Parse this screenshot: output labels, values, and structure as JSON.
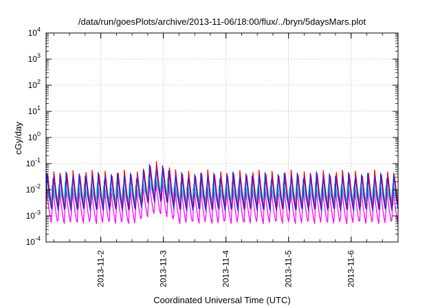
{
  "chart_data": {
    "type": "line",
    "title": "/data/run/goesPlots/archive/2013-11-06/18:00/flux/../bryn/5daysMars.plot",
    "xlabel": "Coordinated Universal Time (UTC)",
    "ylabel": "cGy/day",
    "yscale": "log",
    "ylim": [
      0.0001,
      10000
    ],
    "y_ticks": [
      {
        "value": 0.0001,
        "base": "10",
        "exp": "-4"
      },
      {
        "value": 0.001,
        "base": "10",
        "exp": "-3"
      },
      {
        "value": 0.01,
        "base": "10",
        "exp": "-2"
      },
      {
        "value": 0.1,
        "base": "10",
        "exp": "-1"
      },
      {
        "value": 1,
        "base": "10",
        "exp": "0"
      },
      {
        "value": 10,
        "base": "10",
        "exp": "1"
      },
      {
        "value": 100,
        "base": "10",
        "exp": "2"
      },
      {
        "value": 1000,
        "base": "10",
        "exp": "3"
      },
      {
        "value": 10000,
        "base": "10",
        "exp": "4"
      }
    ],
    "xlim": [
      "2013-11-01T03:00",
      "2013-11-06T18:00"
    ],
    "x_ticks": [
      "2013-11-2",
      "2013-11-3",
      "2013-11-4",
      "2013-11-5",
      "2013-11-6"
    ],
    "x_tick_dates": [
      "2013-11-02T00:00",
      "2013-11-03T00:00",
      "2013-11-04T00:00",
      "2013-11-05T00:00",
      "2013-11-06T00:00"
    ],
    "grid": true,
    "legend": "none",
    "oscillation_cycles_per_day": 9.75,
    "series": [
      {
        "color": "#ff0000",
        "peak": 0.06,
        "trough": 0.0018
      },
      {
        "color": "#2222ff",
        "peak": 0.05,
        "trough": 0.0015
      },
      {
        "color": "#ff00ff",
        "peak": 0.013,
        "trough": 0.0005
      },
      {
        "color": "#00dddd",
        "peak": 0.02,
        "trough": 0.0028
      }
    ],
    "enhancement": {
      "start": "2013-11-02T14:00",
      "end": "2013-11-03T05:00",
      "factor": 2.2
    }
  }
}
